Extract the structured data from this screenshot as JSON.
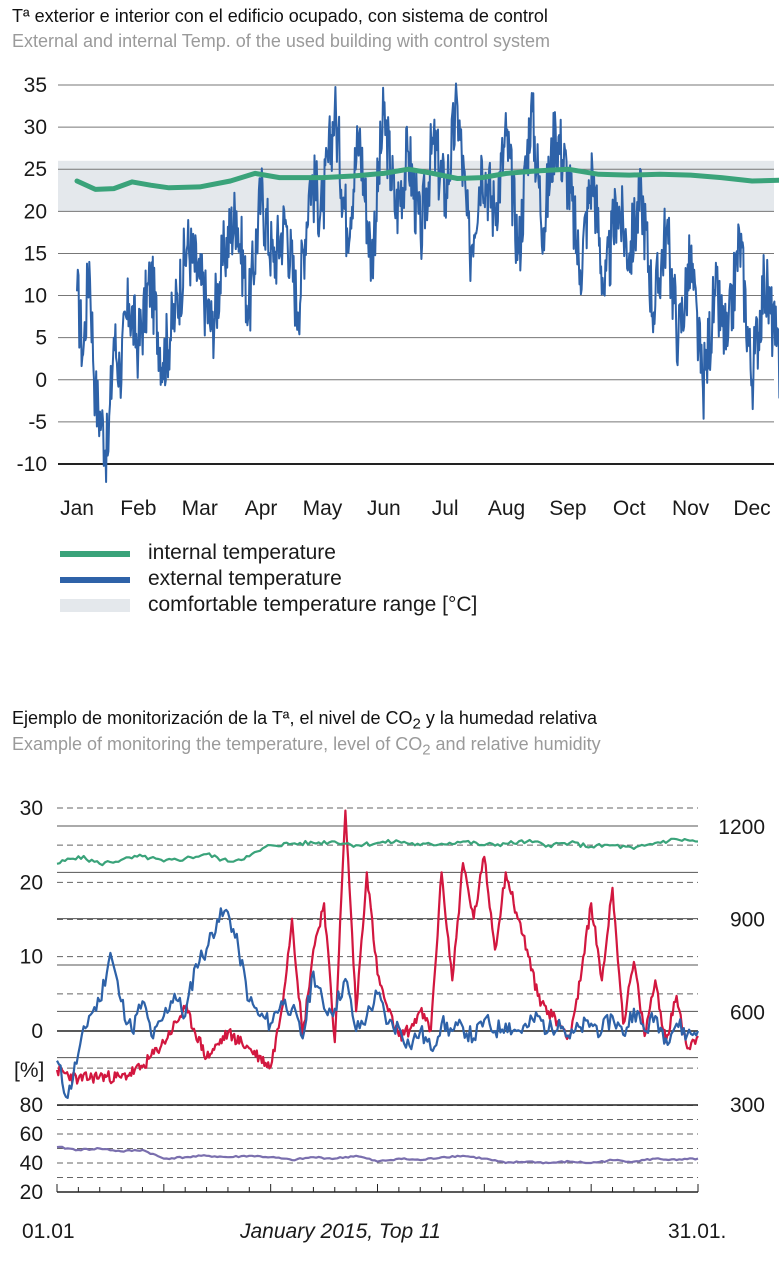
{
  "chart1": {
    "title": "Tª exterior e interior con el edificio ocupado, con sistema de control",
    "subtitle": "External and internal Temp. of the used building with control system",
    "legend": [
      {
        "label": "internal temperature",
        "color": "#3aa37a",
        "kind": "line"
      },
      {
        "label": "external temperature",
        "color": "#2e62a8",
        "kind": "line"
      },
      {
        "label": "comfortable temperature range  [°C]",
        "color": "#e4e8ec",
        "kind": "band"
      }
    ]
  },
  "chart2": {
    "title": "Ejemplo de monitorización de la Tª, el nivel de CO",
    "title_sub": "2",
    "title_tail": " y la humedad relativa",
    "subtitle": "Example of monitoring the temperature, level of CO",
    "subtitle_sub": "2",
    "subtitle_tail": " and relative humidity",
    "footer": {
      "left": "01.01",
      "center": "January 2015, Top 11",
      "right": "31.01."
    }
  },
  "colors": {
    "green": "#3aa37a",
    "blue": "#2e62a8",
    "red": "#d2173f",
    "purple": "#7a6fae",
    "band": "#e4e8ec",
    "grid": "#555555"
  },
  "chart_data": [
    {
      "type": "line",
      "xlabel": "",
      "ylabel": "",
      "ylim": [
        -10,
        35
      ],
      "yticks": [
        "35",
        "30",
        "25",
        "20",
        "15",
        "10",
        "5",
        "0",
        "-5",
        "-10"
      ],
      "categories": [
        "Jan",
        "Feb",
        "Mar",
        "Apr",
        "May",
        "Jun",
        "Jul",
        "Aug",
        "Sep",
        "Oct",
        "Nov",
        "Dec"
      ],
      "comfort_band": [
        20,
        26
      ],
      "grid": true,
      "series": [
        {
          "name": "internal temperature",
          "x": [
            0,
            0.3,
            0.6,
            0.9,
            1.2,
            1.5,
            2.0,
            2.5,
            2.9,
            3.3,
            4.0,
            4.5,
            5.0,
            5.4,
            5.8,
            6.2,
            6.6,
            7.0,
            7.5,
            8.0,
            8.5,
            9.0,
            9.5,
            10.0,
            10.5,
            11.0,
            11.5,
            11.99
          ],
          "values": [
            23.6,
            22.6,
            22.7,
            23.5,
            23.1,
            22.8,
            22.9,
            23.6,
            24.5,
            24.0,
            24.0,
            24.2,
            24.5,
            25.0,
            24.5,
            23.9,
            24.0,
            24.5,
            24.8,
            25.0,
            24.4,
            24.3,
            24.4,
            24.3,
            24.0,
            23.6,
            23.7,
            23.6
          ]
        },
        {
          "name": "external temperature",
          "x": [
            0,
            0.1,
            0.2,
            0.3,
            0.4,
            0.5,
            0.6,
            0.7,
            0.85,
            1.0,
            1.2,
            1.4,
            1.6,
            1.8,
            2.0,
            2.2,
            2.4,
            2.6,
            2.8,
            3.0,
            3.2,
            3.4,
            3.6,
            3.8,
            4.0,
            4.2,
            4.4,
            4.6,
            4.8,
            5.0,
            5.2,
            5.4,
            5.6,
            5.8,
            6.0,
            6.2,
            6.4,
            6.6,
            6.8,
            7.0,
            7.2,
            7.4,
            7.6,
            7.8,
            8.0,
            8.2,
            8.4,
            8.6,
            8.8,
            9.0,
            9.2,
            9.4,
            9.6,
            9.8,
            10.0,
            10.2,
            10.4,
            10.6,
            10.8,
            11.0,
            11.2,
            11.4,
            11.6,
            11.8,
            11.99
          ],
          "values": [
            10.5,
            3.0,
            14.0,
            -2.0,
            -5.0,
            -9.0,
            5.0,
            1.0,
            9.0,
            4.0,
            12.0,
            2.0,
            8.0,
            16.0,
            12.0,
            6.0,
            15.0,
            20.0,
            8.0,
            22.0,
            14.0,
            19.0,
            8.0,
            24.0,
            20.0,
            32.0,
            18.0,
            29.0,
            14.0,
            31.5,
            20.0,
            27.0,
            17.0,
            28.0,
            22.0,
            32.5,
            15.0,
            26.0,
            20.0,
            29.0,
            15.0,
            32.5,
            18.0,
            30.0,
            24.0,
            13.0,
            25.0,
            10.0,
            21.0,
            15.0,
            22.0,
            8.0,
            18.0,
            5.0,
            14.0,
            -1.0,
            10.0,
            4.0,
            17.0,
            0.0,
            12.0,
            4.0,
            -6.5,
            15.5,
            3.0
          ]
        }
      ]
    },
    {
      "type": "line",
      "xlabel": "",
      "ylabel": "",
      "title": "January 2015, Top 11",
      "xlim": [
        1,
        31
      ],
      "xticks": [
        "01.01",
        "31.01."
      ],
      "left_axis_temperature": {
        "ylim": [
          0,
          30
        ],
        "ticks": [
          "30",
          "20",
          "10",
          "0"
        ]
      },
      "left_axis_humidity": {
        "unit": "[%]",
        "ylim": [
          20,
          80
        ],
        "ticks": [
          "80",
          "60",
          "40",
          "20"
        ]
      },
      "right_axis_co2": {
        "ylim": [
          300,
          1200
        ],
        "ticks": [
          "1200",
          "900",
          "600",
          "300"
        ]
      },
      "series": [
        {
          "axis": "temperature",
          "color": "#3aa37a",
          "x": [
            1,
            2,
            3,
            4,
            5,
            6,
            7,
            8,
            9,
            10,
            11,
            12,
            13,
            14,
            15,
            16,
            17,
            18,
            19,
            20,
            21,
            22,
            23,
            24,
            25,
            26,
            27,
            28,
            29,
            30,
            31
          ],
          "values": [
            22.5,
            23.5,
            22.5,
            23.0,
            23.5,
            22.8,
            23.2,
            23.8,
            22.8,
            23.5,
            25.0,
            25.2,
            25.3,
            25.5,
            25.0,
            25.3,
            25.5,
            25.0,
            25.2,
            25.5,
            25.0,
            25.2,
            25.5,
            25.0,
            25.3,
            24.8,
            25.0,
            24.5,
            25.3,
            25.8,
            25.5
          ]
        },
        {
          "axis": "temperature",
          "color": "#2e62a8",
          "x": [
            1,
            1.5,
            2,
            2.5,
            3,
            3.5,
            4,
            4.5,
            5,
            5.5,
            6,
            6.5,
            7,
            7.5,
            8,
            8.5,
            9,
            9.5,
            10,
            10.5,
            11,
            11.5,
            12,
            12.5,
            13,
            13.5,
            14,
            14.5,
            15,
            15.5,
            16,
            16.5,
            17,
            17.5,
            18,
            18.5,
            19,
            19.5,
            20,
            20.5,
            21,
            21.5,
            22,
            22.5,
            23,
            23.5,
            24,
            24.5,
            25,
            25.5,
            26,
            26.5,
            27,
            27.5,
            28,
            28.5,
            29,
            29.5,
            30,
            30.5,
            31
          ],
          "values": [
            -4.0,
            -9.0,
            -3.0,
            2.0,
            4.0,
            10.5,
            4.0,
            0.0,
            4.0,
            -1.0,
            2.0,
            5.0,
            2.0,
            9.0,
            11.0,
            15.0,
            16.0,
            11.0,
            4.0,
            2.0,
            1.0,
            4.0,
            3.0,
            -1.0,
            8.0,
            3.0,
            3.0,
            7.0,
            0.0,
            2.0,
            5.0,
            1.0,
            0.5,
            -2.0,
            0.0,
            -2.5,
            1.0,
            0.0,
            0.5,
            -1.0,
            1.5,
            0.0,
            1.0,
            0.0,
            0.5,
            2.0,
            0.0,
            1.5,
            -1.0,
            0.5,
            1.0,
            0.0,
            2.0,
            -0.5,
            3.0,
            0.0,
            2.0,
            -1.0,
            1.0,
            -0.5,
            0.0
          ]
        },
        {
          "axis": "co2",
          "color": "#d2173f",
          "x": [
            1,
            2,
            3,
            4,
            5,
            6,
            7,
            8,
            9,
            10,
            11,
            11.5,
            12,
            12.5,
            13,
            13.5,
            14,
            14.5,
            15,
            15.5,
            16,
            16.5,
            17,
            17.5,
            18,
            18.5,
            19,
            19.5,
            20,
            20.5,
            21,
            21.5,
            22,
            22.5,
            23,
            23.5,
            24,
            24.5,
            25,
            25.5,
            26,
            26.5,
            27,
            27.5,
            28,
            28.5,
            29,
            29.5,
            30,
            30.5,
            31
          ],
          "values": [
            410,
            380,
            390,
            385,
            420,
            500,
            610,
            450,
            530,
            480,
            420,
            600,
            900,
            520,
            800,
            950,
            500,
            1250,
            600,
            1050,
            720,
            600,
            520,
            540,
            600,
            540,
            1050,
            700,
            1080,
            900,
            1100,
            800,
            1050,
            920,
            800,
            650,
            600,
            560,
            520,
            700,
            950,
            700,
            1000,
            560,
            760,
            520,
            700,
            500,
            650,
            480,
            520
          ]
        },
        {
          "axis": "humidity",
          "color": "#7a6fae",
          "x": [
            1,
            2,
            3,
            4,
            5,
            6,
            7,
            8,
            9,
            10,
            11,
            12,
            13,
            14,
            15,
            16,
            17,
            18,
            19,
            20,
            21,
            22,
            23,
            24,
            25,
            26,
            27,
            28,
            29,
            30,
            31
          ],
          "values": [
            51,
            49,
            50,
            48,
            49,
            43,
            44,
            45,
            44,
            45,
            44,
            42,
            44,
            43,
            45,
            41,
            43,
            42,
            44,
            45,
            43,
            40,
            41,
            40,
            41,
            40,
            42,
            41,
            43,
            42,
            43
          ]
        }
      ]
    }
  ]
}
